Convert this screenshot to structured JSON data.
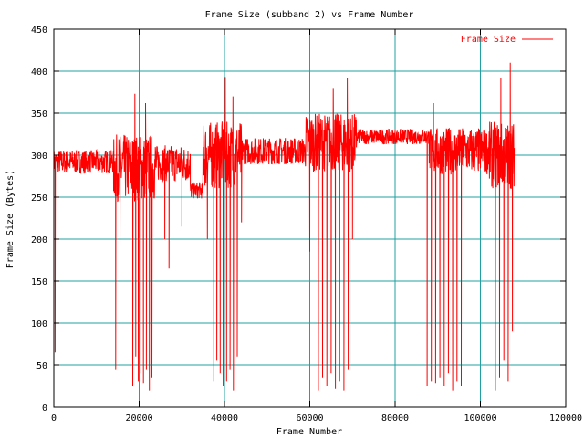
{
  "chart_data": {
    "type": "line",
    "title": "Frame Size (subband 2) vs Frame Number",
    "xlabel": "Frame Number",
    "ylabel": "Frame Size (Bytes)",
    "xlim": [
      0,
      120000
    ],
    "ylim": [
      0,
      450
    ],
    "xticks": [
      0,
      20000,
      40000,
      60000,
      80000,
      100000,
      120000
    ],
    "yticks": [
      0,
      50,
      100,
      150,
      200,
      250,
      300,
      350,
      400,
      450
    ],
    "grid": true,
    "legend_position": "top-right",
    "series": [
      {
        "name": "Frame Size",
        "color": "#ff0000",
        "segments": [
          {
            "x_start": 0,
            "x_end": 14000,
            "base": 292,
            "noise": 14
          },
          {
            "x_start": 14000,
            "x_end": 24000,
            "base": 285,
            "noise": 40
          },
          {
            "x_start": 24000,
            "x_end": 32000,
            "base": 290,
            "noise": 22
          },
          {
            "x_start": 32000,
            "x_end": 35000,
            "base": 258,
            "noise": 10
          },
          {
            "x_start": 35000,
            "x_end": 44000,
            "base": 300,
            "noise": 40
          },
          {
            "x_start": 44000,
            "x_end": 59000,
            "base": 305,
            "noise": 16
          },
          {
            "x_start": 59000,
            "x_end": 71000,
            "base": 315,
            "noise": 35
          },
          {
            "x_start": 71000,
            "x_end": 88000,
            "base": 322,
            "noise": 9
          },
          {
            "x_start": 88000,
            "x_end": 102000,
            "base": 305,
            "noise": 28
          },
          {
            "x_start": 102000,
            "x_end": 108000,
            "base": 300,
            "noise": 40
          }
        ],
        "dips": [
          {
            "x": 300,
            "y": 65
          },
          {
            "x": 14500,
            "y": 45
          },
          {
            "x": 15500,
            "y": 190
          },
          {
            "x": 18500,
            "y": 25
          },
          {
            "x": 19200,
            "y": 60
          },
          {
            "x": 19800,
            "y": 30
          },
          {
            "x": 20400,
            "y": 40
          },
          {
            "x": 21000,
            "y": 28
          },
          {
            "x": 21700,
            "y": 45
          },
          {
            "x": 22400,
            "y": 20
          },
          {
            "x": 23000,
            "y": 35
          },
          {
            "x": 26000,
            "y": 200
          },
          {
            "x": 27000,
            "y": 165
          },
          {
            "x": 30000,
            "y": 215
          },
          {
            "x": 36000,
            "y": 200
          },
          {
            "x": 37500,
            "y": 30
          },
          {
            "x": 38200,
            "y": 55
          },
          {
            "x": 39000,
            "y": 40
          },
          {
            "x": 39700,
            "y": 25
          },
          {
            "x": 40500,
            "y": 30
          },
          {
            "x": 41300,
            "y": 45
          },
          {
            "x": 42100,
            "y": 20
          },
          {
            "x": 43000,
            "y": 60
          },
          {
            "x": 44000,
            "y": 220
          },
          {
            "x": 60000,
            "y": 185
          },
          {
            "x": 62000,
            "y": 20
          },
          {
            "x": 63000,
            "y": 35
          },
          {
            "x": 64000,
            "y": 25
          },
          {
            "x": 65000,
            "y": 40
          },
          {
            "x": 66000,
            "y": 22
          },
          {
            "x": 67000,
            "y": 30
          },
          {
            "x": 68000,
            "y": 20
          },
          {
            "x": 69000,
            "y": 45
          },
          {
            "x": 70000,
            "y": 200
          },
          {
            "x": 87500,
            "y": 25
          },
          {
            "x": 88500,
            "y": 30
          },
          {
            "x": 89500,
            "y": 28
          },
          {
            "x": 90500,
            "y": 35
          },
          {
            "x": 91500,
            "y": 25
          },
          {
            "x": 92500,
            "y": 40
          },
          {
            "x": 93500,
            "y": 20
          },
          {
            "x": 94500,
            "y": 30
          },
          {
            "x": 95500,
            "y": 25
          },
          {
            "x": 103500,
            "y": 20
          },
          {
            "x": 104500,
            "y": 35
          },
          {
            "x": 105500,
            "y": 55
          },
          {
            "x": 106500,
            "y": 30
          },
          {
            "x": 107500,
            "y": 90
          }
        ],
        "peaks": [
          {
            "x": 19000,
            "y": 373
          },
          {
            "x": 21500,
            "y": 362
          },
          {
            "x": 40200,
            "y": 393
          },
          {
            "x": 42000,
            "y": 370
          },
          {
            "x": 65500,
            "y": 380
          },
          {
            "x": 68800,
            "y": 392
          },
          {
            "x": 89000,
            "y": 362
          },
          {
            "x": 104800,
            "y": 392
          },
          {
            "x": 107000,
            "y": 410
          }
        ]
      }
    ]
  }
}
